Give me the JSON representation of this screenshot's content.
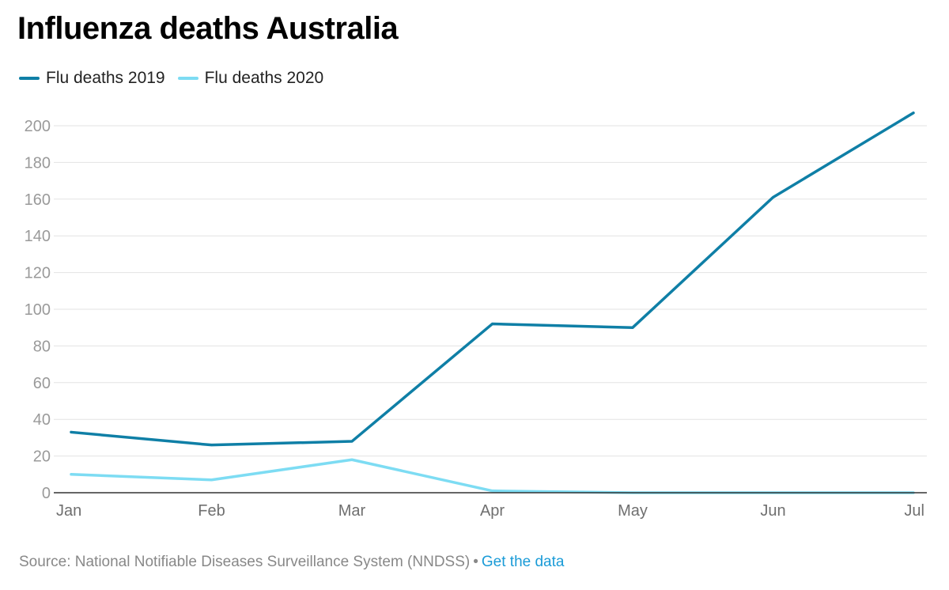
{
  "title": "Influenza deaths Australia",
  "legend": [
    {
      "label": "Flu deaths 2019",
      "color": "#0f7fa6"
    },
    {
      "label": "Flu deaths 2020",
      "color": "#7ddcf3"
    }
  ],
  "footer": {
    "source": "Source: National Notifiable Diseases Surveillance System (NNDSS)",
    "separator": "•",
    "link_label": "Get the data",
    "link_color": "#1a9bd7"
  },
  "chart_data": {
    "type": "line",
    "title": "Influenza deaths Australia",
    "categories": [
      "Jan",
      "Feb",
      "Mar",
      "Apr",
      "May",
      "Jun",
      "Jul"
    ],
    "series": [
      {
        "name": "Flu deaths 2019",
        "color": "#0f7fa6",
        "values": [
          33,
          26,
          28,
          92,
          90,
          161,
          207
        ]
      },
      {
        "name": "Flu deaths 2020",
        "color": "#7ddcf3",
        "values": [
          10,
          7,
          18,
          1,
          0,
          0,
          0
        ]
      }
    ],
    "yticks": [
      0,
      20,
      40,
      60,
      80,
      100,
      120,
      140,
      160,
      180,
      200
    ],
    "ylim": [
      0,
      200
    ],
    "xlabel": "",
    "ylabel": "",
    "grid": true,
    "legend_position": "top-left"
  }
}
